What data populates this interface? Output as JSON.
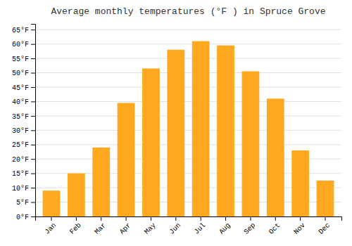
{
  "chart_data": {
    "type": "bar",
    "title": "Average monthly temperatures (°F ) in Spruce Grove",
    "categories": [
      "Jan",
      "Feb",
      "Mar",
      "Apr",
      "May",
      "Jun",
      "Jul",
      "Aug",
      "Sep",
      "Oct",
      "Nov",
      "Dec"
    ],
    "values": [
      9,
      15,
      24,
      39.5,
      51.5,
      58,
      61,
      59.5,
      50.5,
      41,
      23,
      12.5
    ],
    "color": "#FFA820",
    "ylim": [
      0,
      67
    ],
    "yticks": [
      {
        "value": 0,
        "label": "0°F"
      },
      {
        "value": 5,
        "label": "5°F"
      },
      {
        "value": 10,
        "label": "10°F"
      },
      {
        "value": 15,
        "label": "15°F"
      },
      {
        "value": 20,
        "label": "20°F"
      },
      {
        "value": 25,
        "label": "25°F"
      },
      {
        "value": 30,
        "label": "30°F"
      },
      {
        "value": 35,
        "label": "35°F"
      },
      {
        "value": 40,
        "label": "40°F"
      },
      {
        "value": 45,
        "label": "45°F"
      },
      {
        "value": 50,
        "label": "50°F"
      },
      {
        "value": 55,
        "label": "55°F"
      },
      {
        "value": 60,
        "label": "60°F"
      },
      {
        "value": 65,
        "label": "65°F"
      }
    ],
    "grid": true
  }
}
